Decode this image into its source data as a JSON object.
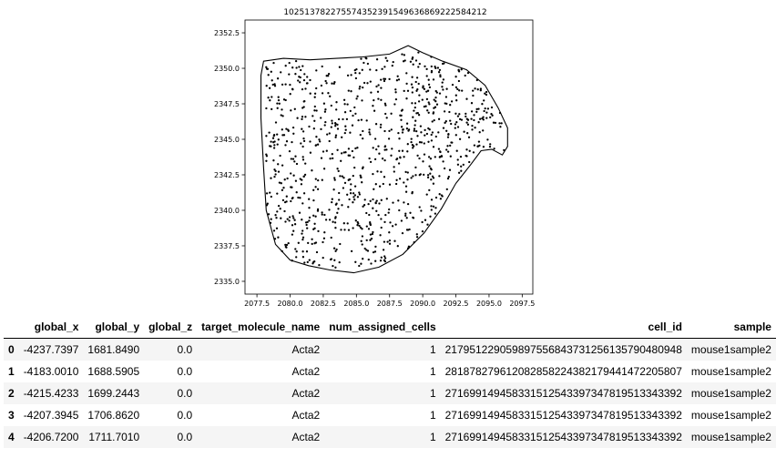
{
  "chart_data": {
    "type": "scatter",
    "title": "102513782275574352391549636869222584212",
    "xlabel": "",
    "ylabel": "",
    "xlim": [
      2076.6,
      2098.3
    ],
    "ylim": [
      2334.1,
      2353.4
    ],
    "xticks": [
      "2077.5",
      "2080.0",
      "2082.5",
      "2085.0",
      "2087.5",
      "2090.0",
      "2092.5",
      "2095.0",
      "2097.5"
    ],
    "yticks": [
      "2335.0",
      "2337.5",
      "2340.0",
      "2342.5",
      "2345.0",
      "2347.5",
      "2350.0",
      "2352.5"
    ],
    "grid": false,
    "point_color": "#000000",
    "outline_color": "#000000",
    "outline": [
      [
        2078.0,
        2350.5
      ],
      [
        2079.5,
        2350.7
      ],
      [
        2081.5,
        2350.6
      ],
      [
        2083.5,
        2350.7
      ],
      [
        2085.5,
        2350.8
      ],
      [
        2087.5,
        2351.0
      ],
      [
        2088.9,
        2351.6
      ],
      [
        2090.0,
        2351.1
      ],
      [
        2091.5,
        2350.5
      ],
      [
        2093.3,
        2349.9
      ],
      [
        2094.7,
        2348.8
      ],
      [
        2095.7,
        2347.2
      ],
      [
        2096.4,
        2345.8
      ],
      [
        2096.4,
        2344.5
      ],
      [
        2096.0,
        2343.9
      ],
      [
        2095.2,
        2344.3
      ],
      [
        2094.4,
        2344.2
      ],
      [
        2093.6,
        2343.2
      ],
      [
        2092.5,
        2341.9
      ],
      [
        2091.4,
        2340.1
      ],
      [
        2090.1,
        2338.4
      ],
      [
        2088.5,
        2336.9
      ],
      [
        2086.7,
        2336.0
      ],
      [
        2084.8,
        2335.6
      ],
      [
        2083.0,
        2335.8
      ],
      [
        2081.4,
        2336.1
      ],
      [
        2080.0,
        2336.5
      ],
      [
        2078.9,
        2337.6
      ],
      [
        2078.2,
        2340.0
      ],
      [
        2078.0,
        2343.0
      ],
      [
        2077.8,
        2346.5
      ],
      [
        2077.8,
        2349.5
      ],
      [
        2078.0,
        2350.5
      ]
    ],
    "points_note_seed": 7
  },
  "table": {
    "columns": [
      "",
      "global_x",
      "global_y",
      "global_z",
      "target_molecule_name",
      "num_assigned_cells",
      "cell_id",
      "sample"
    ],
    "rows": [
      [
        "0",
        "-4237.7397",
        "1681.8490",
        "0.0",
        "Acta2",
        "1",
        "217951229059897556843731256135790480948",
        "mouse1sample2"
      ],
      [
        "1",
        "-4183.0010",
        "1688.5905",
        "0.0",
        "Acta2",
        "1",
        "281878279612082858224382179441472205807",
        "mouse1sample2"
      ],
      [
        "2",
        "-4215.4233",
        "1699.2443",
        "0.0",
        "Acta2",
        "1",
        "271699149458331512543397347819513343392",
        "mouse1sample2"
      ],
      [
        "3",
        "-4207.3945",
        "1706.8620",
        "0.0",
        "Acta2",
        "1",
        "271699149458331512543397347819513343392",
        "mouse1sample2"
      ],
      [
        "4",
        "-4206.7200",
        "1711.7010",
        "0.0",
        "Acta2",
        "1",
        "271699149458331512543397347819513343392",
        "mouse1sample2"
      ]
    ]
  }
}
